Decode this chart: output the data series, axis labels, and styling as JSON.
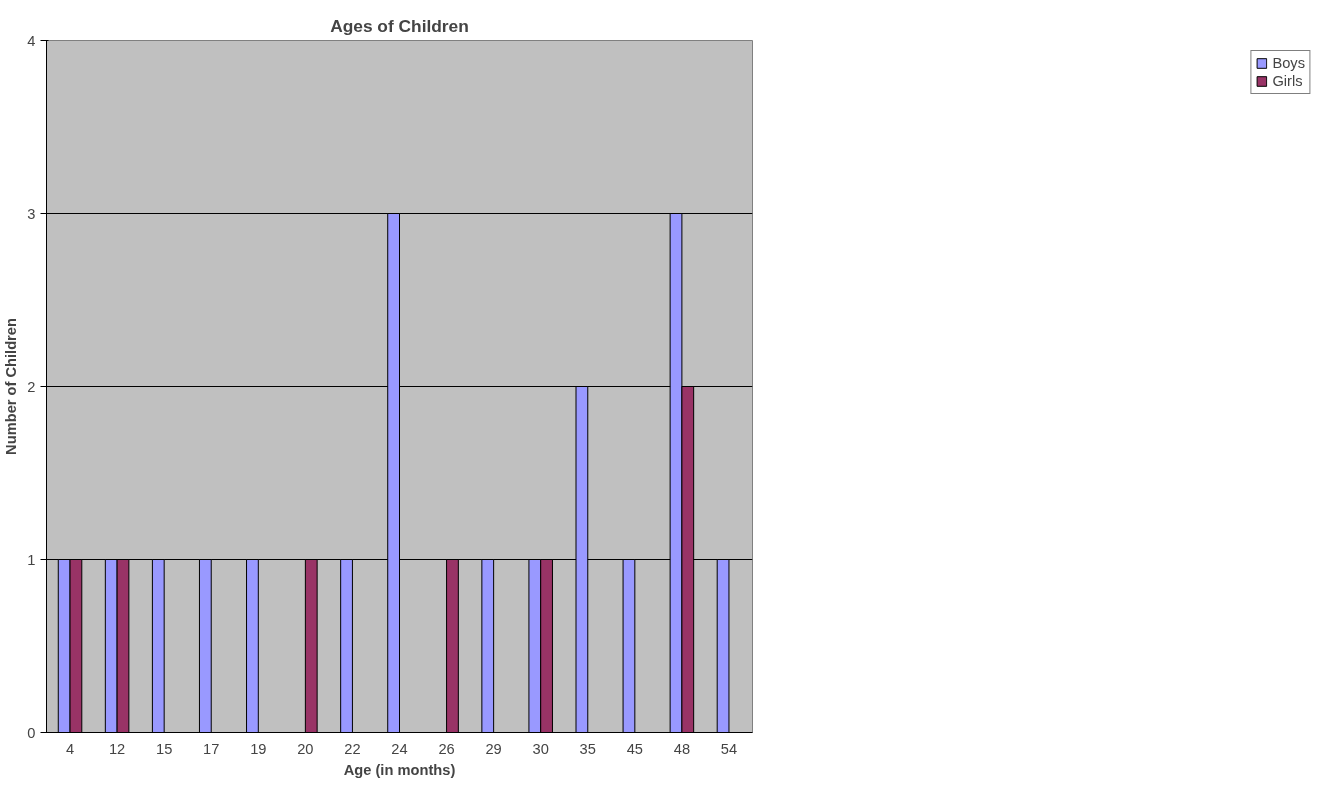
{
  "chart_data": {
    "type": "bar",
    "title": "Ages of Children",
    "xlabel": "Age (in months)",
    "ylabel": "Number of Children",
    "categories": [
      "4",
      "12",
      "15",
      "17",
      "19",
      "20",
      "22",
      "24",
      "26",
      "29",
      "30",
      "35",
      "45",
      "48",
      "54"
    ],
    "series": [
      {
        "name": "Boys",
        "color": "#9999ff",
        "values": [
          1,
          1,
          1,
          1,
          1,
          null,
          1,
          3,
          null,
          1,
          1,
          2,
          1,
          3,
          1
        ]
      },
      {
        "name": "Girls",
        "color": "#993366",
        "values": [
          1,
          1,
          null,
          null,
          null,
          1,
          null,
          null,
          1,
          null,
          1,
          null,
          null,
          2,
          null
        ]
      }
    ],
    "ylim": [
      0,
      4
    ],
    "yticks": [
      0,
      1,
      2,
      3,
      4
    ],
    "grid": "y",
    "legend": "right"
  }
}
